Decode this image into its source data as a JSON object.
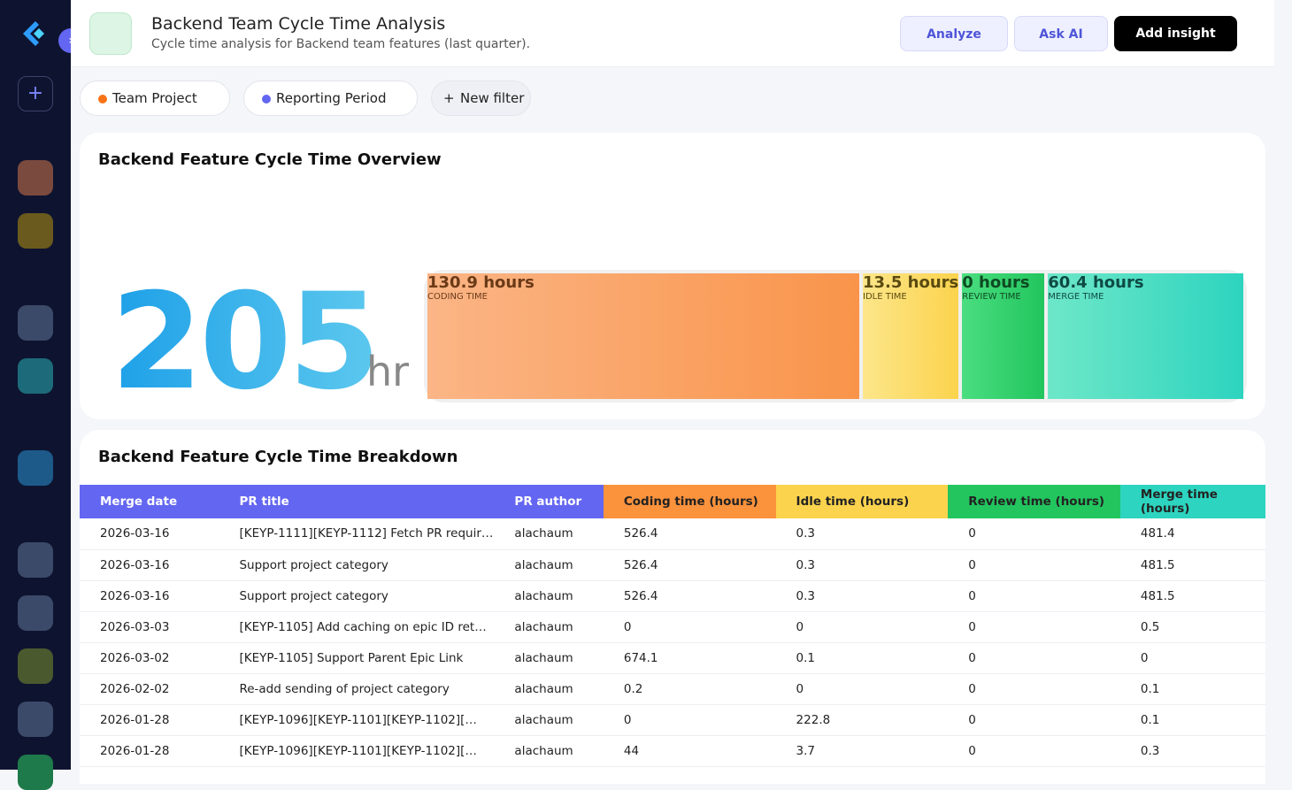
{
  "header": {
    "title": "Backend Team Cycle Time Analysis",
    "subtitle": "Cycle time analysis for Backend team features (last quarter).",
    "buttons": [
      "Analyze",
      "Ask AI",
      "Add insight"
    ]
  },
  "filters": [
    "Team Project",
    "Reporting Period",
    "New filter"
  ],
  "overview": {
    "title": "Backend Feature Cycle Time Overview",
    "total": "205",
    "unit": "hr",
    "segments": [
      {
        "value": "130.9 hours",
        "label": "CODING TIME"
      },
      {
        "value": "13.5 hours",
        "label": "IDLE TIME"
      },
      {
        "value": "0 hours",
        "label": "REVIEW TIME"
      },
      {
        "value": "60.4 hours",
        "label": "MERGE TIME"
      }
    ]
  },
  "table": {
    "title": "Backend Feature Cycle Time Breakdown",
    "columns": [
      "Merge date",
      "PR title",
      "PR author",
      "Coding time (hours)",
      "Idle time (hours)",
      "Review time (hours)",
      "Merge time (hours)"
    ],
    "rows": [
      [
        "2026-03-16",
        "[KEYP-1111][KEYP-1112] Fetch PR requir…",
        "alachaum",
        "526.4",
        "0.3",
        "0",
        "481.4"
      ],
      [
        "2026-03-16",
        "Support project category",
        "alachaum",
        "526.4",
        "0.3",
        "0",
        "481.5"
      ],
      [
        "2026-03-16",
        "Support project category",
        "alachaum",
        "526.4",
        "0.3",
        "0",
        "481.5"
      ],
      [
        "2026-03-03",
        "[KEYP-1105] Add caching on epic ID ret…",
        "alachaum",
        "0",
        "0",
        "0",
        "0.5"
      ],
      [
        "2026-03-02",
        "[KEYP-1105] Support Parent Epic Link",
        "alachaum",
        "674.1",
        "0.1",
        "0",
        "0"
      ],
      [
        "2026-02-02",
        "Re-add sending of project category",
        "alachaum",
        "0.2",
        "0",
        "0",
        "0.1"
      ],
      [
        "2026-01-28",
        "[KEYP-1096][KEYP-1101][KEYP-1102][…",
        "alachaum",
        "0",
        "222.8",
        "0",
        "0.1"
      ],
      [
        "2026-01-28",
        "[KEYP-1096][KEYP-1101][KEYP-1102][…",
        "alachaum",
        "44",
        "3.7",
        "0",
        "0.3"
      ]
    ]
  }
}
